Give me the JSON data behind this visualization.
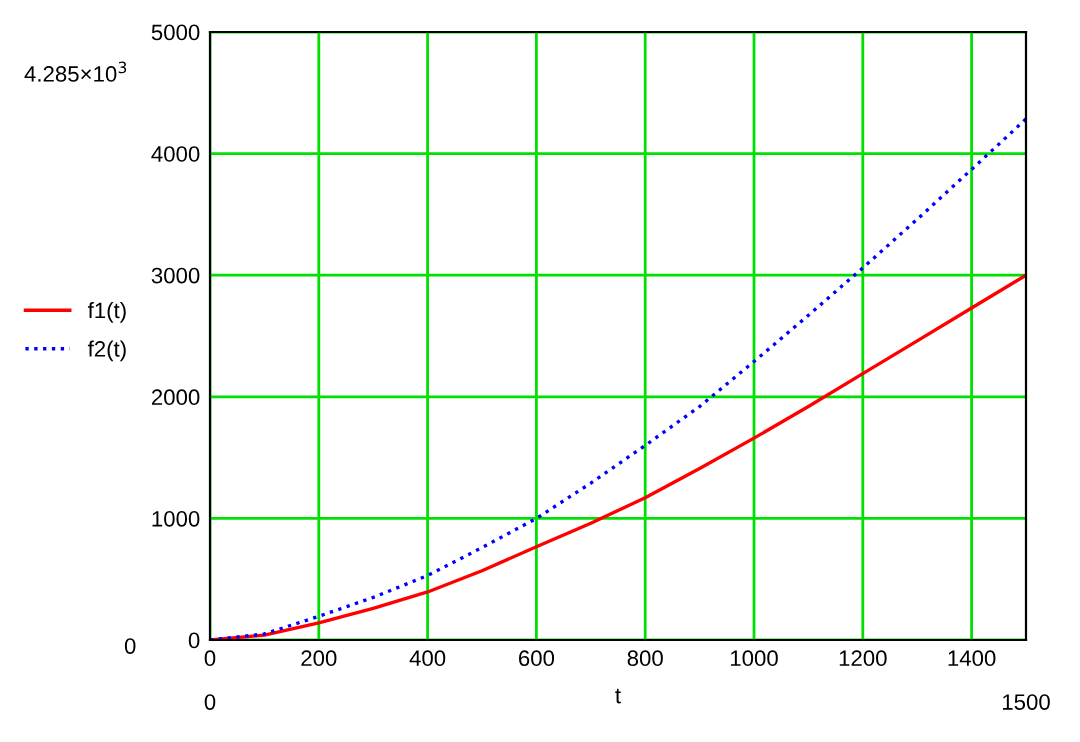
{
  "chart_data": {
    "type": "line",
    "xlabel": "t",
    "x": [
      0,
      100,
      200,
      300,
      400,
      500,
      600,
      700,
      800,
      900,
      1000,
      1100,
      1200,
      1300,
      1400,
      1500
    ],
    "series": [
      {
        "name": "f1(t)",
        "color": "#ff0000",
        "line_style": "solid",
        "values": [
          0,
          40,
          140,
          260,
          395,
          570,
          767,
          960,
          1170,
          1410,
          1660,
          1920,
          2190,
          2460,
          2730,
          3000
        ]
      },
      {
        "name": "f2(t)",
        "color": "#0000ff",
        "line_style": "dotted",
        "values": [
          0,
          50,
          195,
          350,
          530,
          760,
          1000,
          1290,
          1600,
          1920,
          2290,
          2670,
          3060,
          3460,
          3870,
          4285
        ]
      }
    ],
    "xlim": [
      0,
      1500
    ],
    "xticks": [
      0,
      200,
      400,
      600,
      800,
      1000,
      1200,
      1400
    ],
    "ylim": [
      0,
      5000
    ],
    "yticks": [
      0,
      1000,
      2000,
      3000,
      4000,
      5000
    ],
    "grid": true,
    "legend": "left",
    "marker": "none",
    "annotations": [
      "4.285×10$^{3}$",
      "0",
      "0",
      "1500"
    ]
  }
}
